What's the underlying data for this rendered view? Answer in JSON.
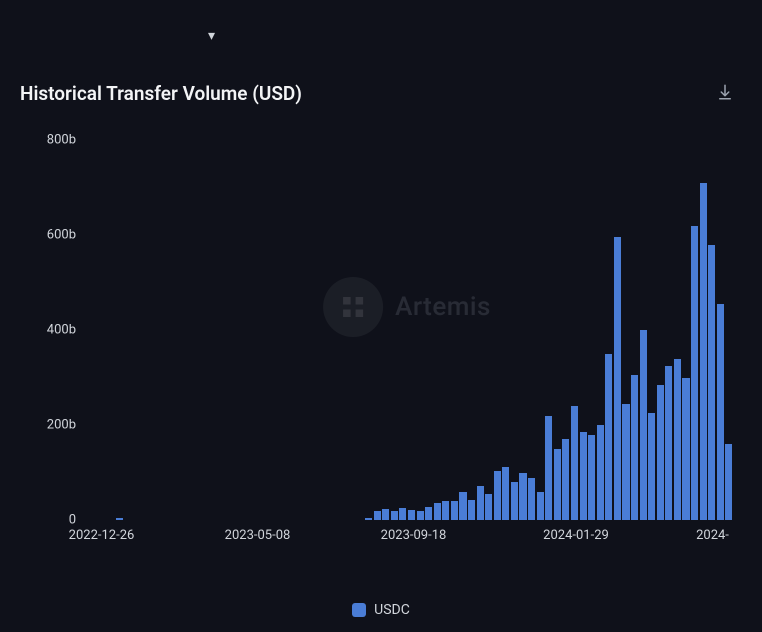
{
  "dropdown": {
    "chevron": "▾"
  },
  "header": {
    "title": "Historical Transfer Volume (USD)"
  },
  "watermark": {
    "text": "Artemis",
    "circle_bg": "#55585f"
  },
  "chart": {
    "type": "bar",
    "background_color": "#0f111a",
    "bar_color": "#4a7dd6",
    "text_color": "#d1d5db",
    "ylim": [
      0,
      800
    ],
    "y_ticks": [
      {
        "value": 0,
        "label": "0"
      },
      {
        "value": 200,
        "label": "200b"
      },
      {
        "value": 400,
        "label": "400b"
      },
      {
        "value": 600,
        "label": "600b"
      },
      {
        "value": 800,
        "label": "800b"
      }
    ],
    "x_ticks": [
      {
        "pos": 0.03,
        "label": "2022-12-26"
      },
      {
        "pos": 0.27,
        "label": "2023-05-08"
      },
      {
        "pos": 0.51,
        "label": "2023-09-18"
      },
      {
        "pos": 0.76,
        "label": "2024-01-29"
      },
      {
        "pos": 0.97,
        "label": "2024-"
      }
    ],
    "bars": [
      0,
      0,
      0,
      0,
      5,
      0,
      0,
      0,
      0,
      0,
      0,
      0,
      0,
      0,
      0,
      0,
      0,
      0,
      0,
      0,
      0,
      0,
      0,
      0,
      0,
      0,
      0,
      0,
      0,
      0,
      0,
      0,
      0,
      5,
      18,
      23,
      18,
      25,
      22,
      20,
      28,
      35,
      40,
      40,
      60,
      42,
      72,
      55,
      103,
      112,
      80,
      98,
      88,
      60,
      220,
      150,
      170,
      240,
      185,
      180,
      200,
      350,
      595,
      245,
      305,
      400,
      225,
      285,
      325,
      340,
      300,
      620,
      710,
      580,
      455,
      160
    ],
    "legend": {
      "label": "USDC",
      "color": "#4a7dd6"
    }
  }
}
